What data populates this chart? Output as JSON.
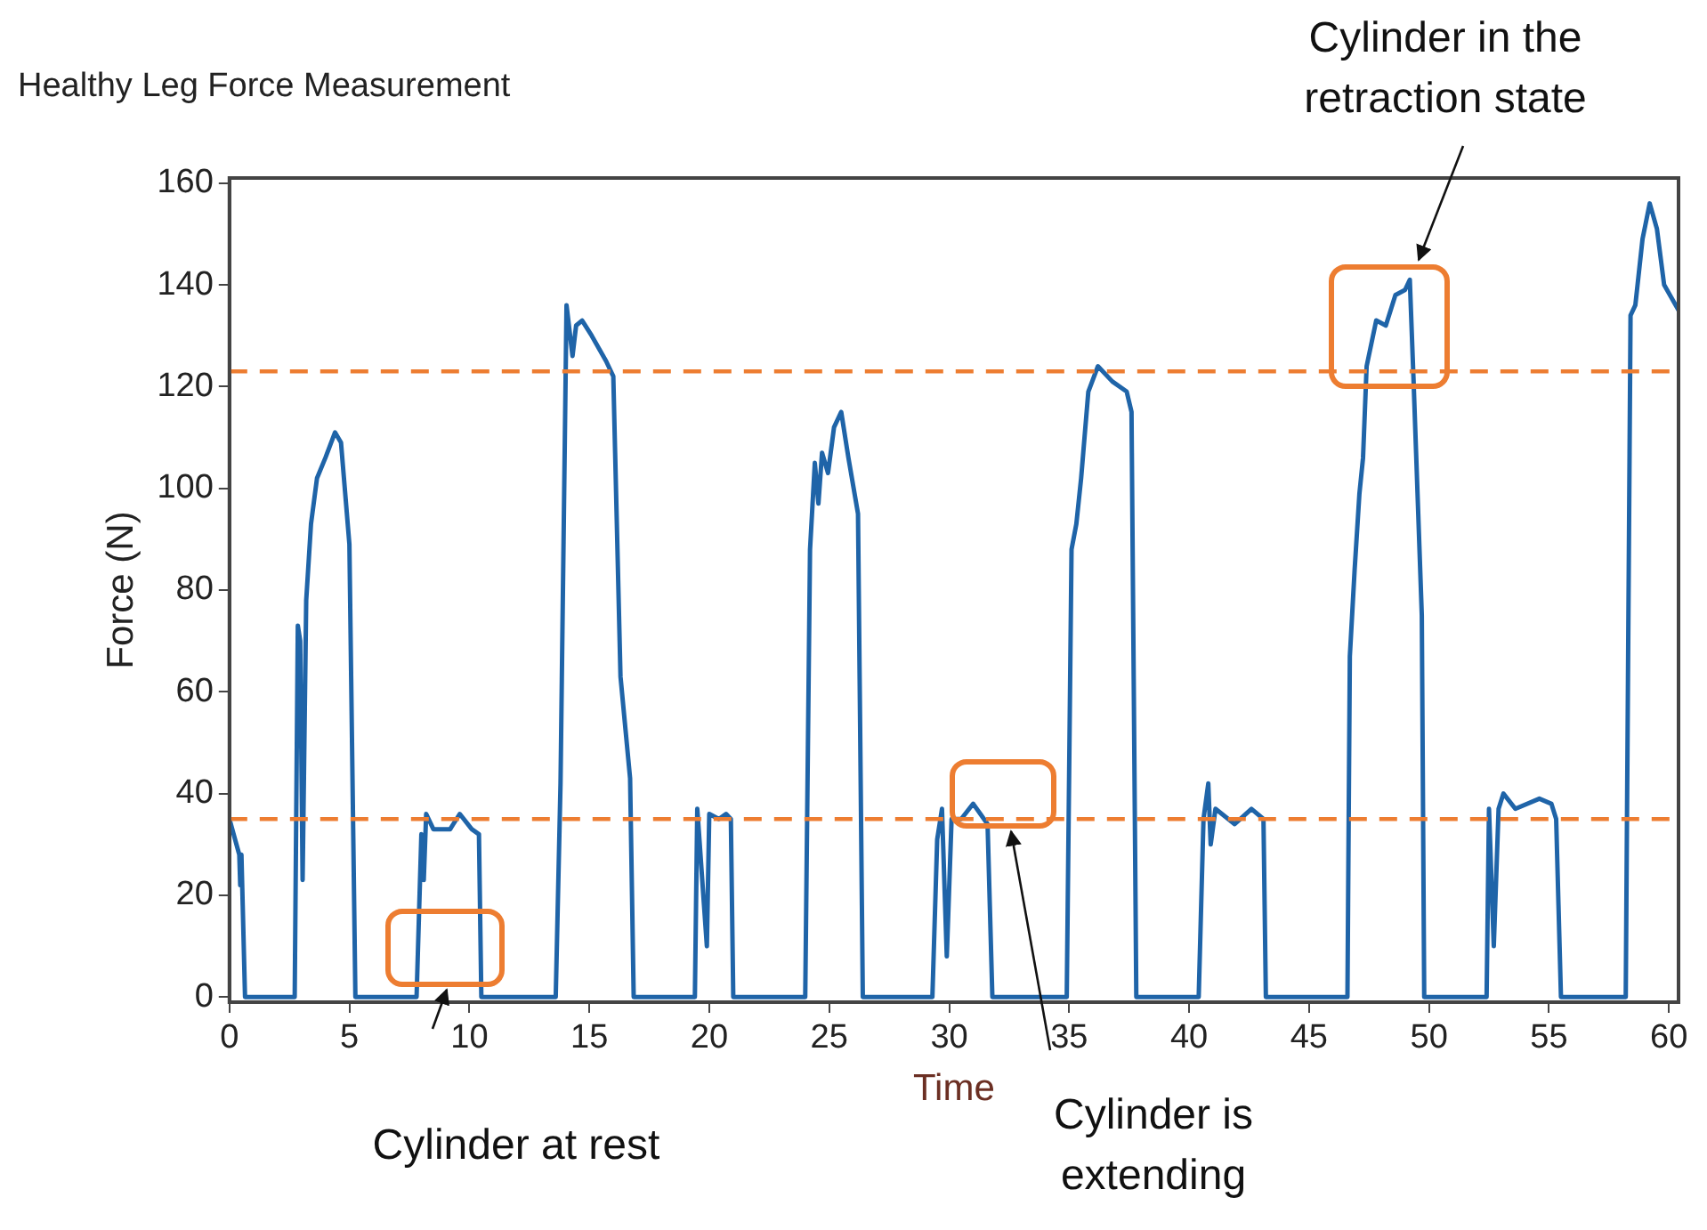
{
  "chart_data": {
    "type": "line",
    "title": "Healthy Leg Force Measurement",
    "xlabel": "Time",
    "ylabel": "Force (N)",
    "xlim": [
      0,
      60.4
    ],
    "xticks": [
      0,
      5,
      10,
      15,
      20,
      25,
      30,
      35,
      40,
      45,
      50,
      55,
      60
    ],
    "ylim": [
      -1,
      161
    ],
    "yticks": [
      0,
      20,
      40,
      60,
      80,
      100,
      120,
      140,
      160
    ],
    "grid": false,
    "legend": false,
    "marker": "none",
    "line_style": "solid",
    "series": [
      {
        "color": "#1f64a8",
        "x": [
          0,
          0.41,
          0.45,
          0.5,
          0.65,
          2.72,
          2.85,
          2.95,
          3.05,
          3.2,
          3.4,
          3.65,
          4.0,
          4.4,
          4.65,
          5.0,
          5.25,
          7.8,
          8.0,
          8.1,
          8.2,
          8.5,
          9.2,
          9.6,
          10.1,
          10.4,
          10.5,
          13.6,
          13.8,
          14.05,
          14.3,
          14.45,
          14.7,
          15.1,
          15.7,
          16.0,
          16.3,
          16.7,
          16.85,
          19.4,
          19.5,
          19.9,
          20.0,
          20.4,
          20.7,
          20.9,
          21.0,
          24.0,
          24.2,
          24.4,
          24.55,
          24.7,
          24.95,
          25.2,
          25.5,
          25.8,
          26.2,
          26.4,
          29.3,
          29.5,
          29.7,
          29.9,
          30.1,
          30.5,
          31.0,
          31.3,
          31.6,
          31.8,
          34.9,
          35.1,
          35.3,
          35.5,
          35.8,
          36.2,
          36.8,
          37.4,
          37.6,
          37.8,
          40.4,
          40.6,
          40.8,
          40.9,
          41.1,
          41.9,
          42.6,
          43.1,
          43.2,
          46.6,
          46.7,
          46.9,
          47.1,
          47.25,
          47.4,
          47.8,
          48.2,
          48.6,
          49.0,
          49.2,
          49.35,
          49.7,
          49.8,
          52.4,
          52.5,
          52.7,
          52.9,
          53.1,
          53.6,
          54.6,
          55.1,
          55.3,
          55.5,
          58.2,
          58.4,
          58.6,
          58.9,
          59.2,
          59.5,
          59.8,
          60.4
        ],
        "values": [
          35,
          28,
          22,
          28,
          0,
          0,
          73,
          70,
          23,
          78,
          93,
          102,
          106,
          111,
          109,
          89,
          0,
          0,
          32,
          23,
          36,
          33,
          33,
          36,
          33,
          32,
          0,
          0,
          42,
          136,
          126,
          132,
          133,
          130,
          125,
          122,
          63,
          43,
          0,
          0,
          37,
          10,
          36,
          35,
          36,
          35,
          0,
          0,
          88,
          105,
          97,
          107,
          103,
          112,
          115,
          106,
          95,
          0,
          0,
          31,
          37,
          8,
          35,
          35,
          38,
          36,
          34,
          0,
          0,
          88,
          93,
          102,
          119,
          124,
          121,
          119,
          115,
          0,
          0,
          35,
          42,
          30,
          37,
          34,
          37,
          35,
          0,
          0,
          67,
          84,
          99,
          106,
          124,
          133,
          132,
          138,
          139,
          141,
          122,
          75,
          0,
          0,
          37,
          10,
          37,
          40,
          37,
          39,
          38,
          35,
          0,
          0,
          134,
          136,
          149,
          156,
          151,
          140,
          135
        ]
      }
    ],
    "ref_lines": [
      {
        "axis": "y",
        "value": 123,
        "color": "#ed7d31",
        "line_style": "dashed"
      },
      {
        "axis": "y",
        "value": 35,
        "color": "#ed7d31",
        "line_style": "dashed"
      }
    ],
    "annotations": [
      "Cylinder at rest",
      "Cylinder is extending",
      "Cylinder in the retraction state"
    ]
  }
}
